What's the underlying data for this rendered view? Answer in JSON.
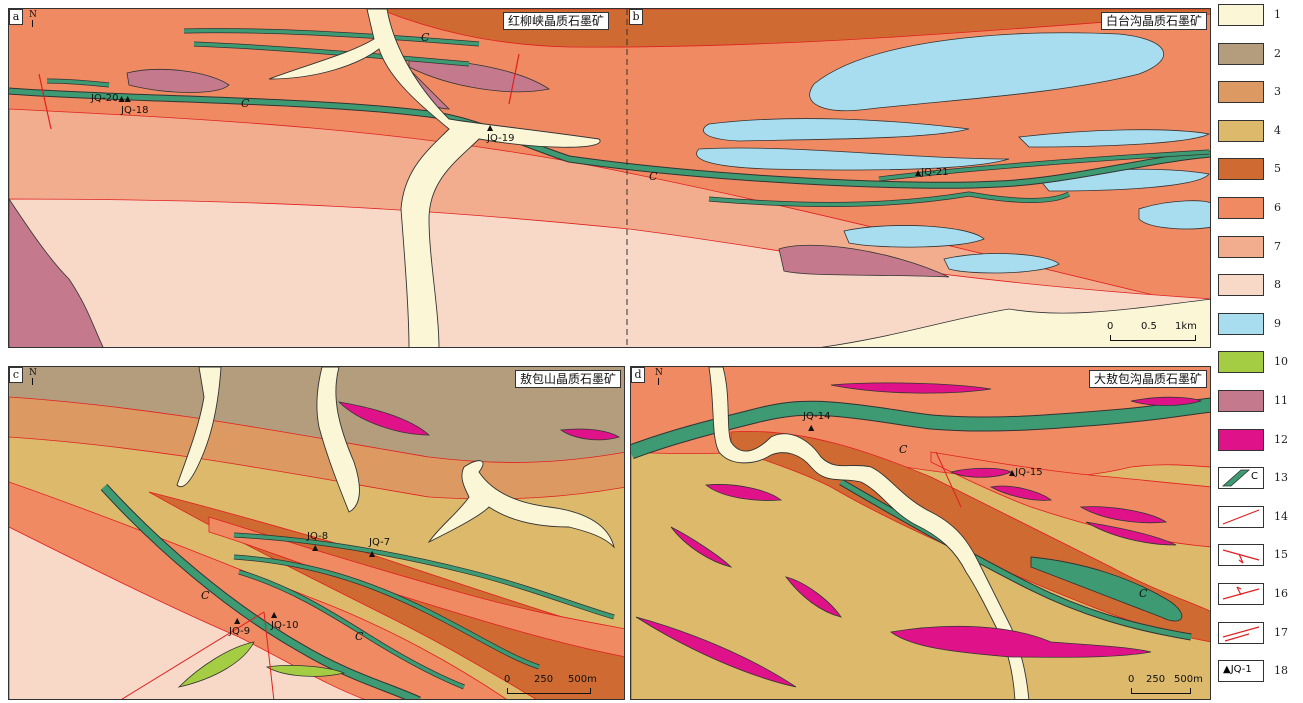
{
  "panels": {
    "a": {
      "letter": "a",
      "title": "红柳峡晶质石墨矿",
      "north": "N"
    },
    "b": {
      "letter": "b",
      "title": "白台沟晶质石墨矿",
      "scale": {
        "ticks": [
          "0",
          "0.5",
          "1km"
        ]
      }
    },
    "c": {
      "letter": "c",
      "title": "敖包山晶质石墨矿",
      "north": "N",
      "scale": {
        "ticks": [
          "0",
          "250",
          "500m"
        ]
      }
    },
    "d": {
      "letter": "d",
      "title": "大敖包沟晶质石墨矿",
      "north": "N",
      "scale": {
        "ticks": [
          "0",
          "250",
          "500m"
        ]
      }
    }
  },
  "marker_layer": "C",
  "samples": {
    "jq20": "JQ-20",
    "jq18": "JQ-18",
    "jq19": "JQ-19",
    "jq21": "JQ-21",
    "jq8": "JQ-8",
    "jq7": "JQ-7",
    "jq9": "JQ-9",
    "jq10": "JQ-10",
    "jq14": "JQ-14",
    "jq15": "JQ-15"
  },
  "legend": [
    {
      "num": "1",
      "color": "#fbf7d6",
      "kind": "fill"
    },
    {
      "num": "2",
      "color": "#b49d7c",
      "kind": "fill"
    },
    {
      "num": "3",
      "color": "#dc9a62",
      "kind": "fill"
    },
    {
      "num": "4",
      "color": "#dcb96b",
      "kind": "fill"
    },
    {
      "num": "5",
      "color": "#cf6a32",
      "kind": "fill"
    },
    {
      "num": "6",
      "color": "#ef8a62",
      "kind": "fill"
    },
    {
      "num": "7",
      "color": "#f2ad8f",
      "kind": "fill"
    },
    {
      "num": "8",
      "color": "#f8d9c8",
      "kind": "fill"
    },
    {
      "num": "9",
      "color": "#a8dcef",
      "kind": "fill"
    },
    {
      "num": "10",
      "color": "#a5cd43",
      "kind": "fill"
    },
    {
      "num": "11",
      "color": "#c47a8c",
      "kind": "fill"
    },
    {
      "num": "12",
      "color": "#e0128a",
      "kind": "fill"
    },
    {
      "num": "13",
      "color": "#3d9a72",
      "kind": "graphite",
      "label": "C"
    },
    {
      "num": "14",
      "color": "#e02020",
      "kind": "line"
    },
    {
      "num": "15",
      "color": "#e02020",
      "kind": "normal-fault"
    },
    {
      "num": "16",
      "color": "#e02020",
      "kind": "reverse-fault"
    },
    {
      "num": "17",
      "color": "#e02020",
      "kind": "strike-slip"
    },
    {
      "num": "18",
      "color": "#111111",
      "kind": "sample",
      "label": "▲JQ-1"
    }
  ],
  "colors": {
    "cream": "#fbf7d6",
    "brownGray": "#b49d7c",
    "lightBrown": "#dc9a62",
    "khaki": "#dcb96b",
    "darkOrange": "#cf6a32",
    "orange": "#ef8a62",
    "salmon": "#f2ad8f",
    "pink": "#f8d9c8",
    "blue": "#a8dcef",
    "green": "#a5cd43",
    "mauve": "#c47a8c",
    "magenta": "#e0128a",
    "graphite": "#3d9a72",
    "fault": "#e02020"
  }
}
